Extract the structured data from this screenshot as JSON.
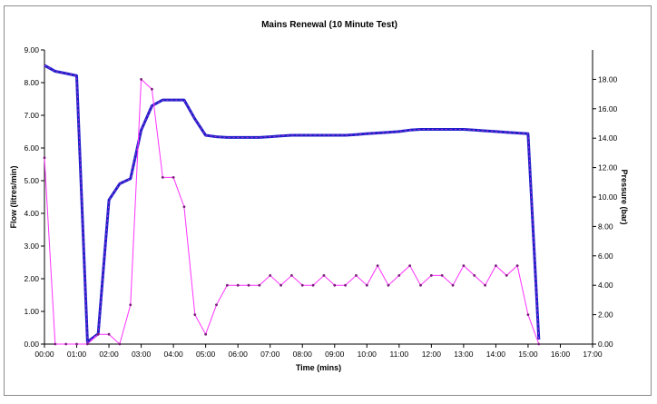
{
  "chart_data": {
    "type": "line",
    "title": "Mains Renewal (10 Minute Test)",
    "xlabel": "Time (mins)",
    "ylabel_left": "Flow (litres/min)",
    "ylabel_right": "Pressure (bar)",
    "xlim": [
      0,
      17
    ],
    "ylim_left": [
      0,
      9
    ],
    "ylim_right": [
      0,
      20
    ],
    "x_tick_labels": [
      "00:00",
      "01:00",
      "02:00",
      "03:00",
      "04:00",
      "05:00",
      "06:00",
      "07:00",
      "08:00",
      "09:00",
      "10:00",
      "11:00",
      "12:00",
      "13:00",
      "14:00",
      "15:00",
      "16:00",
      "17:00"
    ],
    "y_left_tick_labels": [
      "0.00",
      "1.00",
      "2.00",
      "3.00",
      "4.00",
      "5.00",
      "6.00",
      "7.00",
      "8.00",
      "9.00"
    ],
    "y_right_tick_labels": [
      "0.00",
      "2.00",
      "4.00",
      "6.00",
      "8.00",
      "10.00",
      "12.00",
      "14.00",
      "16.00",
      "18.00"
    ],
    "grid": false,
    "legend": "none",
    "series": [
      {
        "axis": "right",
        "color": "#1f1fcc",
        "marker_color": "#cc33cc",
        "x": [
          0.0,
          0.333,
          0.667,
          1.0,
          1.333,
          1.667,
          2.0,
          2.333,
          2.667,
          3.0,
          3.333,
          3.667,
          4.0,
          4.333,
          4.667,
          5.0,
          5.333,
          5.667,
          6.0,
          6.333,
          6.667,
          7.0,
          7.333,
          7.667,
          8.0,
          8.333,
          8.667,
          9.0,
          9.333,
          9.667,
          10.0,
          10.333,
          10.667,
          11.0,
          11.333,
          11.667,
          12.0,
          12.333,
          12.667,
          13.0,
          13.333,
          13.667,
          14.0,
          14.333,
          14.667,
          15.0,
          15.333
        ],
        "values": [
          18.95,
          18.55,
          18.4,
          18.25,
          0.15,
          0.7,
          9.8,
          10.9,
          11.25,
          14.55,
          16.2,
          16.6,
          16.6,
          16.6,
          15.3,
          14.2,
          14.1,
          14.05,
          14.05,
          14.05,
          14.05,
          14.1,
          14.15,
          14.2,
          14.2,
          14.2,
          14.2,
          14.2,
          14.2,
          14.25,
          14.3,
          14.35,
          14.4,
          14.45,
          14.55,
          14.6,
          14.6,
          14.6,
          14.6,
          14.6,
          14.55,
          14.5,
          14.45,
          14.4,
          14.35,
          14.3,
          0.3
        ]
      },
      {
        "axis": "left",
        "color": "#ff33ff",
        "marker_color": "#7a1f7a",
        "x": [
          0.0,
          0.333,
          0.667,
          1.0,
          1.333,
          1.667,
          2.0,
          2.333,
          2.667,
          3.0,
          3.333,
          3.667,
          4.0,
          4.333,
          4.667,
          5.0,
          5.333,
          5.667,
          6.0,
          6.333,
          6.667,
          7.0,
          7.333,
          7.667,
          8.0,
          8.333,
          8.667,
          9.0,
          9.333,
          9.667,
          10.0,
          10.333,
          10.667,
          11.0,
          11.333,
          11.667,
          12.0,
          12.333,
          12.667,
          13.0,
          13.333,
          13.667,
          14.0,
          14.333,
          14.667,
          15.0,
          15.333
        ],
        "values": [
          5.7,
          0.0,
          0.0,
          0.0,
          0.0,
          0.3,
          0.3,
          0.0,
          1.2,
          8.1,
          7.8,
          5.1,
          5.1,
          4.2,
          0.9,
          0.3,
          1.2,
          1.8,
          1.8,
          1.8,
          1.8,
          2.1,
          1.8,
          2.1,
          1.8,
          1.8,
          2.1,
          1.8,
          1.8,
          2.1,
          1.8,
          2.4,
          1.8,
          2.1,
          2.4,
          1.8,
          2.1,
          2.1,
          1.8,
          2.4,
          2.1,
          1.8,
          2.4,
          2.1,
          2.4,
          0.9,
          0.0
        ]
      }
    ]
  }
}
